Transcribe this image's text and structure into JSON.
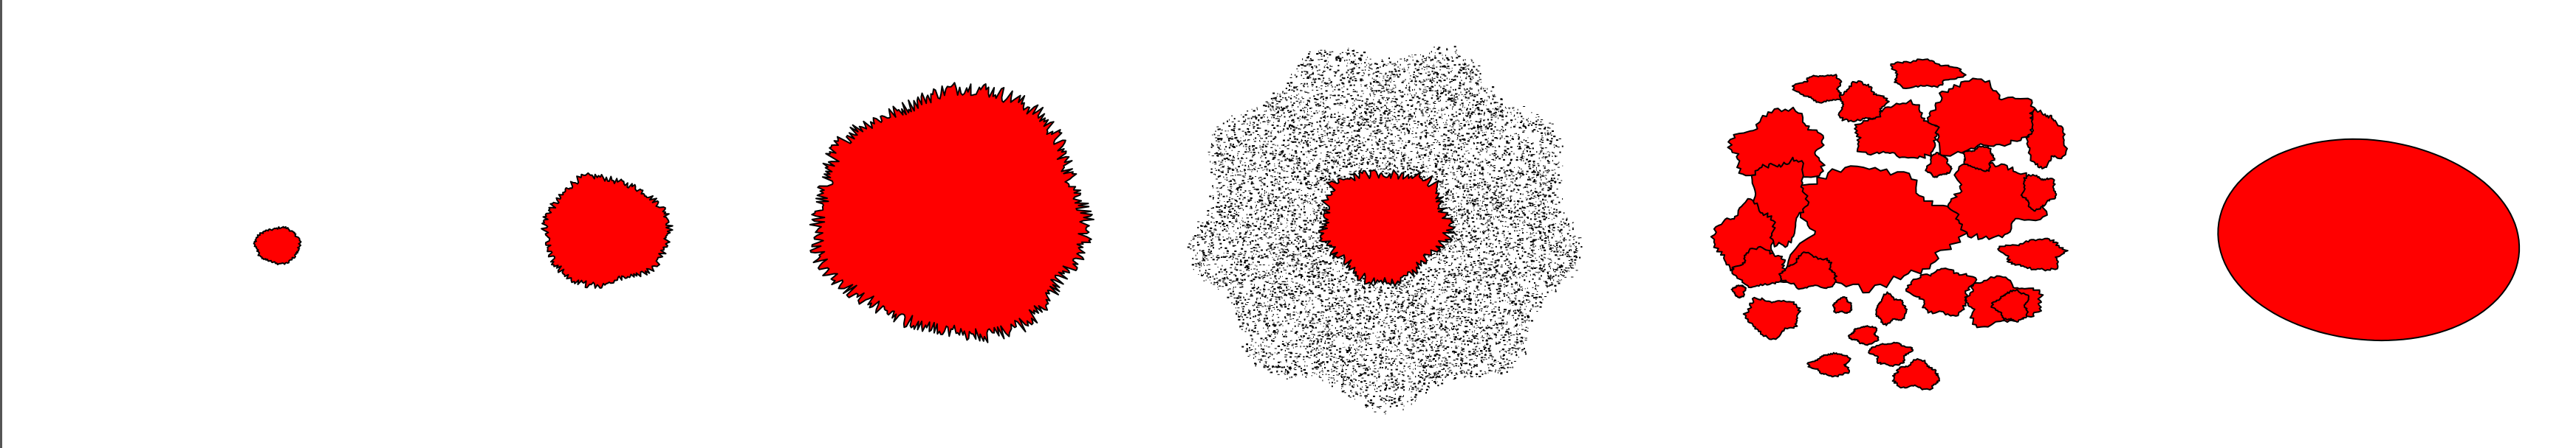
{
  "colors": {
    "background": "#ffffff",
    "cluster_fill": "#ff0000",
    "cluster_edge": "#000000",
    "halo_dots": "#000000",
    "frame_rule": "#555555"
  },
  "panels": [
    {
      "id": "stage-1",
      "shape": "small-rough-blob",
      "halo": false,
      "fragmented": false
    },
    {
      "id": "stage-2",
      "shape": "medium-rough-blob",
      "halo": false,
      "fragmented": false
    },
    {
      "id": "stage-3",
      "shape": "large-rough-blob",
      "halo": false,
      "fragmented": false
    },
    {
      "id": "stage-4",
      "shape": "blob-with-sparse-particle-halo",
      "halo": true,
      "fragmented": false
    },
    {
      "id": "stage-5",
      "shape": "fragmented-islands",
      "halo": false,
      "fragmented": true
    },
    {
      "id": "stage-6",
      "shape": "smooth-ellipse",
      "halo": false,
      "fragmented": false
    }
  ]
}
